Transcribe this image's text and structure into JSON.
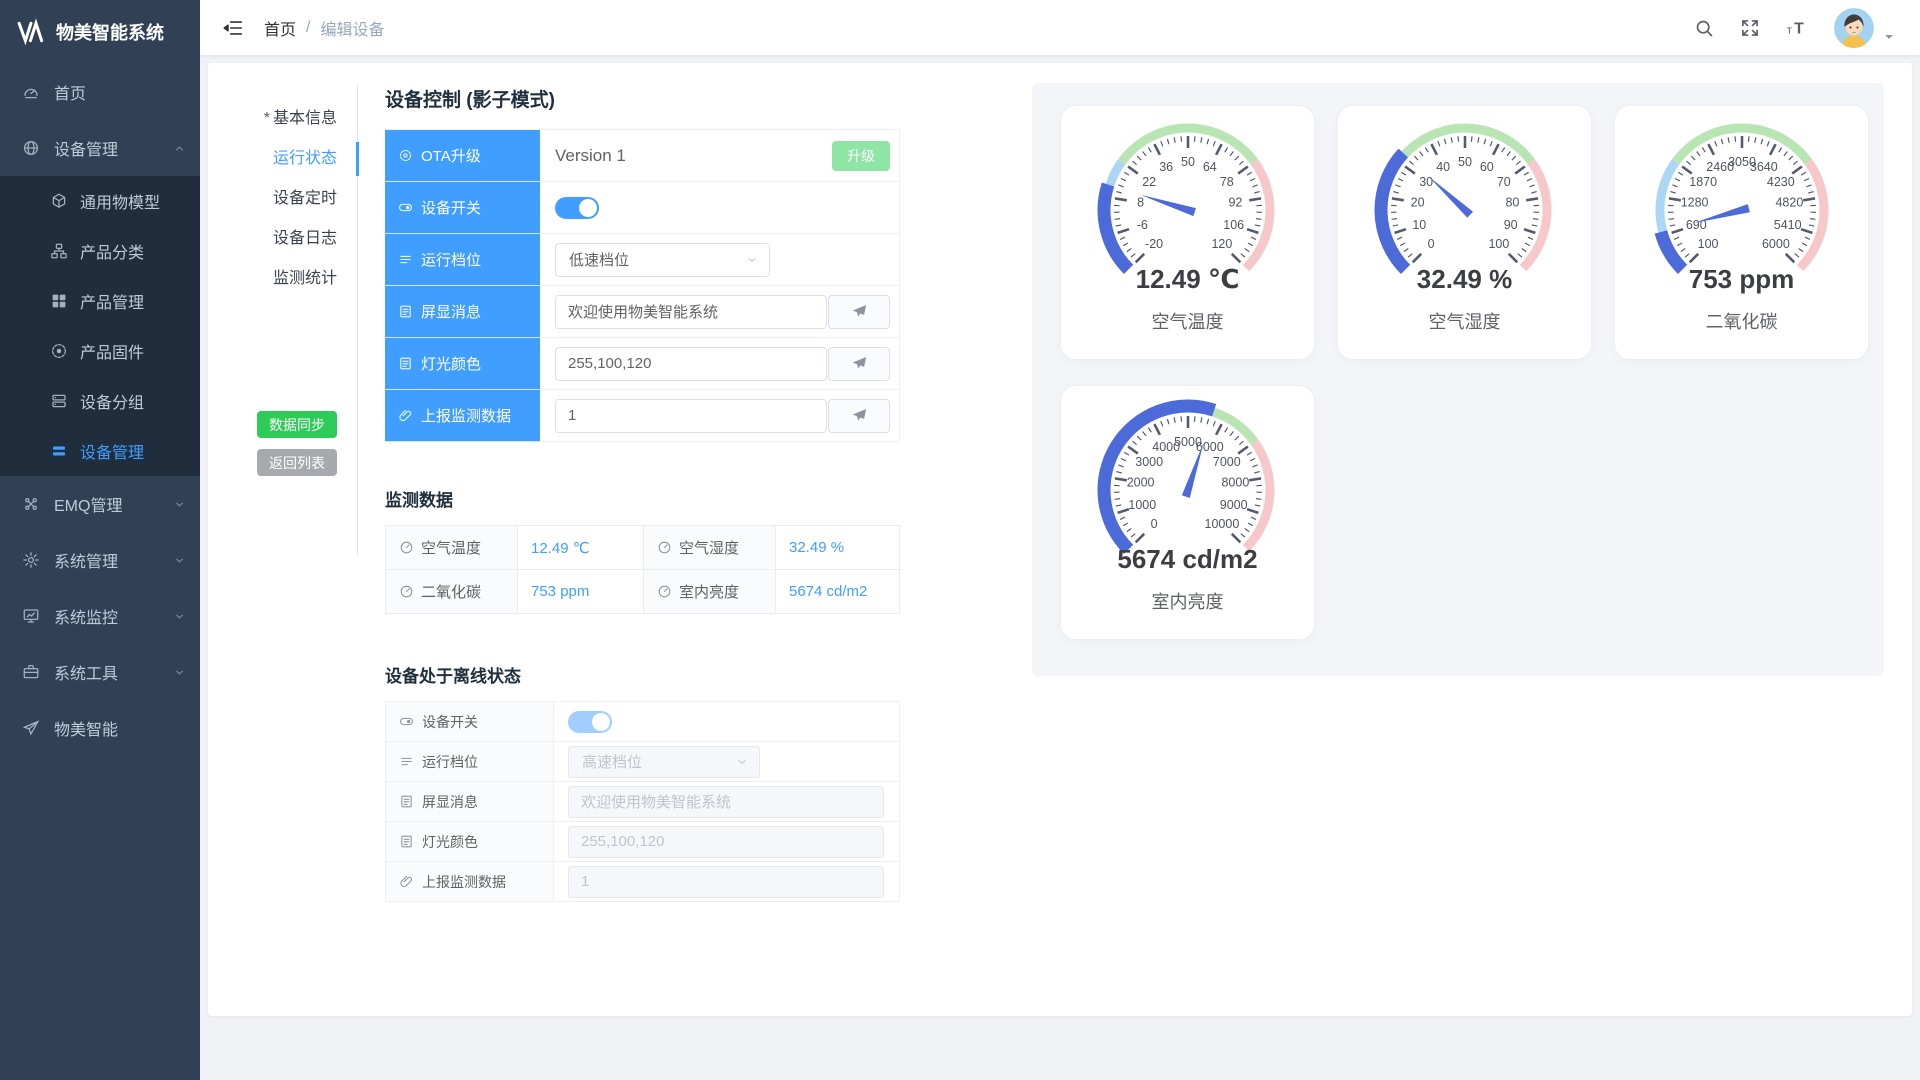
{
  "app": {
    "brand": "物美智能系统"
  },
  "colors": {
    "primary": "#409EFF",
    "sidebar_bg": "#304156",
    "submenu_bg": "#1f2d3d",
    "sync_green": "#2fcb58",
    "back_gray": "#a6a9ad",
    "upgrade_green": "#8ee5a5",
    "monitor_value_blue": "#409EFF",
    "gauge_progress_blue": "#4d6bd8",
    "gauge_light_blue": "#abd7f5",
    "gauge_green": "#b9e5b4",
    "gauge_pink": "#f6c8ca"
  },
  "sidebar": {
    "items": [
      {
        "label": "首页",
        "icon": "dashboard"
      },
      {
        "label": "设备管理",
        "icon": "globe",
        "expanded": true,
        "children": [
          {
            "label": "通用物模型",
            "icon": "cube"
          },
          {
            "label": "产品分类",
            "icon": "category"
          },
          {
            "label": "产品管理",
            "icon": "grid"
          },
          {
            "label": "产品固件",
            "icon": "firmware"
          },
          {
            "label": "设备分组",
            "icon": "group"
          },
          {
            "label": "设备管理",
            "icon": "list",
            "active": true
          }
        ]
      },
      {
        "label": "EMQ管理",
        "icon": "emq",
        "collapsible": true
      },
      {
        "label": "系统管理",
        "icon": "gear",
        "collapsible": true
      },
      {
        "label": "系统监控",
        "icon": "monitor",
        "collapsible": true
      },
      {
        "label": "系统工具",
        "icon": "tools",
        "collapsible": true
      },
      {
        "label": "物美智能",
        "icon": "plane"
      }
    ]
  },
  "navbar": {
    "breadcrumb": {
      "home": "首页",
      "separator": "/",
      "current": "编辑设备"
    },
    "right_icons": [
      "search",
      "fullscreen",
      "font-size",
      "avatar",
      "caret-down"
    ]
  },
  "panel": {
    "tabs": [
      {
        "label": "基本信息",
        "required": true
      },
      {
        "label": "运行状态",
        "active": true
      },
      {
        "label": "设备定时"
      },
      {
        "label": "设备日志"
      },
      {
        "label": "监测统计"
      }
    ],
    "sync_button": "数据同步",
    "back_button": "返回列表",
    "control_title": "设备控制 (影子模式)",
    "control_rows": [
      {
        "icon": "ota",
        "label": "OTA升级",
        "type": "ota",
        "value": "Version 1",
        "button": "升级"
      },
      {
        "icon": "switch",
        "label": "设备开关",
        "type": "switch",
        "on": true
      },
      {
        "icon": "levels",
        "label": "运行档位",
        "type": "select",
        "value": "低速档位"
      },
      {
        "icon": "doc",
        "label": "屏显消息",
        "type": "input-send",
        "value": "欢迎使用物美智能系统"
      },
      {
        "icon": "doc",
        "label": "灯光颜色",
        "type": "input-send",
        "value": "255,100,120"
      },
      {
        "icon": "clip",
        "label": "上报监测数据",
        "type": "input-send",
        "value": "1"
      }
    ],
    "monitor_title": "监测数据",
    "monitor_cells": [
      {
        "label": "空气温度",
        "value": "12.49 ℃"
      },
      {
        "label": "空气湿度",
        "value": "32.49 %"
      },
      {
        "label": "二氧化碳",
        "value": "753 ppm"
      },
      {
        "label": "室内亮度",
        "value": "5674 cd/m2"
      }
    ],
    "offline_title": "设备处于离线状态",
    "offline_rows": [
      {
        "icon": "switch",
        "label": "设备开关",
        "type": "switch",
        "on": true
      },
      {
        "icon": "levels",
        "label": "运行档位",
        "type": "select",
        "value": "高速档位"
      },
      {
        "icon": "doc",
        "label": "屏显消息",
        "type": "input",
        "value": "欢迎使用物美智能系统"
      },
      {
        "icon": "doc",
        "label": "灯光颜色",
        "type": "input",
        "value": "255,100,120"
      },
      {
        "icon": "clip",
        "label": "上报监测数据",
        "type": "input",
        "value": "1"
      }
    ]
  },
  "chart_data": [
    {
      "type": "gauge",
      "title": "空气温度",
      "value": 12.49,
      "display_value": "12.49 ℃",
      "min": -20,
      "max": 120,
      "tick_labels": [
        -20,
        -6,
        8,
        22,
        36,
        50,
        64,
        78,
        92,
        106,
        120
      ],
      "segments": [
        [
          0.3,
          "#abd7f5"
        ],
        [
          0.7,
          "#b9e5b4"
        ],
        [
          1,
          "#f6c8ca"
        ]
      ],
      "progress_color": "#4d6bd8",
      "start_angle": 225,
      "end_angle": -45
    },
    {
      "type": "gauge",
      "title": "空气湿度",
      "value": 32.49,
      "display_value": "32.49 %",
      "min": 0,
      "max": 100,
      "tick_labels": [
        0,
        10,
        20,
        30,
        40,
        50,
        60,
        70,
        80,
        90,
        100
      ],
      "segments": [
        [
          0.3,
          "#abd7f5"
        ],
        [
          0.7,
          "#b9e5b4"
        ],
        [
          1,
          "#f6c8ca"
        ]
      ],
      "progress_color": "#4d6bd8",
      "start_angle": 225,
      "end_angle": -45
    },
    {
      "type": "gauge",
      "title": "二氧化碳",
      "value": 753,
      "display_value": "753 ppm",
      "min": 100,
      "max": 6000,
      "tick_labels": [
        100,
        690,
        1280,
        1870,
        2460,
        3050,
        3640,
        4230,
        4820,
        5410,
        6000
      ],
      "segments": [
        [
          0.3,
          "#abd7f5"
        ],
        [
          0.7,
          "#b9e5b4"
        ],
        [
          1,
          "#f6c8ca"
        ]
      ],
      "progress_color": "#4d6bd8",
      "start_angle": 225,
      "end_angle": -45
    },
    {
      "type": "gauge",
      "title": "室内亮度",
      "value": 5674,
      "display_value": "5674 cd/m2",
      "min": 0,
      "max": 10000,
      "tick_labels": [
        0,
        1000,
        2000,
        3000,
        4000,
        5000,
        6000,
        7000,
        8000,
        9000,
        10000
      ],
      "segments": [
        [
          0.3,
          "#abd7f5"
        ],
        [
          0.7,
          "#b9e5b4"
        ],
        [
          1,
          "#f6c8ca"
        ]
      ],
      "progress_color": "#4d6bd8",
      "start_angle": 225,
      "end_angle": -45
    }
  ]
}
